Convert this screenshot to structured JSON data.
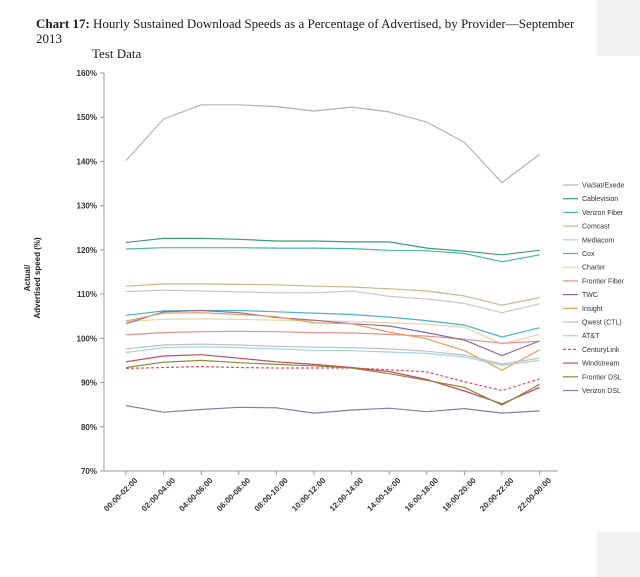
{
  "page": {
    "title_label": "Chart 17:",
    "title_line1": "Hourly Sustained Download Speeds as a Percentage of Advertised, by Provider—September 2013",
    "title_line2": "Test Data",
    "panel_color": "#f2f2f2"
  },
  "chart_data": {
    "type": "line",
    "categories": [
      "00:00-02:00",
      "02:00-04:00",
      "04:00-06:00",
      "06:00-08:00",
      "08:00-10:00",
      "10:00-12:00",
      "12:00-14:00",
      "14:00-16:00",
      "16:00-18:00",
      "18:00-20:00",
      "20:00-22:00",
      "22:00-00:00"
    ],
    "ylabel": [
      "Actual/",
      "Advertised speed (%)"
    ],
    "ylim": [
      70,
      160
    ],
    "yticks": [
      70,
      80,
      90,
      100,
      110,
      120,
      130,
      140,
      150,
      160
    ],
    "ytick_labels": [
      "70%",
      "80%",
      "90%",
      "100%",
      "110%",
      "120%",
      "130%",
      "140%",
      "150%",
      "160%"
    ],
    "grid": false,
    "legend_position": "right",
    "series": [
      {
        "name": "ViaSat/Exede",
        "color": "#b3b3b3",
        "values": [
          140.2,
          149.6,
          152.8,
          152.8,
          152.4,
          151.4,
          152.3,
          151.2,
          148.9,
          144.3,
          135.2,
          141.6
        ]
      },
      {
        "name": "Cablevision",
        "color": "#3d9e75",
        "values": [
          121.7,
          122.6,
          122.6,
          122.4,
          122.0,
          122.0,
          121.8,
          121.8,
          120.4,
          119.7,
          118.9,
          119.9
        ]
      },
      {
        "name": "Verizon Fiber",
        "color": "#45b8a8",
        "values": [
          120.2,
          120.5,
          120.5,
          120.5,
          120.4,
          120.4,
          120.3,
          119.9,
          119.8,
          119.2,
          117.3,
          118.9
        ]
      },
      {
        "name": "Comcast",
        "color": "#c9b98a",
        "values": [
          111.8,
          112.3,
          112.3,
          112.2,
          112.1,
          111.8,
          111.6,
          111.2,
          110.7,
          109.6,
          107.5,
          109.2
        ]
      },
      {
        "name": "Mediacom",
        "color": "#c8c8c8",
        "values": [
          110.6,
          110.9,
          110.7,
          110.5,
          110.3,
          110.3,
          110.7,
          109.5,
          108.9,
          107.9,
          105.8,
          107.8
        ]
      },
      {
        "name": "Cox",
        "color": "#4bb2c9",
        "values": [
          105.2,
          106.2,
          106.3,
          106.3,
          106.0,
          105.7,
          105.4,
          104.8,
          104.0,
          103.0,
          100.3,
          102.4
        ]
      },
      {
        "name": "Charter",
        "color": "#e8d3a8",
        "values": [
          103.8,
          104.3,
          104.4,
          104.3,
          104.1,
          104.0,
          103.8,
          103.5,
          103.2,
          102.5,
          98.7,
          100.9
        ]
      },
      {
        "name": "Frontier Fiber",
        "color": "#e58f8f",
        "values": [
          100.8,
          101.3,
          101.5,
          101.6,
          101.5,
          101.3,
          101.2,
          100.9,
          100.5,
          99.8,
          98.9,
          99.3
        ]
      },
      {
        "name": "TWC",
        "color": "#8c6d9e",
        "values": [
          103.3,
          106.0,
          106.3,
          105.8,
          104.7,
          104.1,
          103.3,
          102.8,
          101.3,
          99.6,
          96.1,
          99.4
        ]
      },
      {
        "name": "Insight",
        "color": "#e3a05a",
        "values": [
          103.9,
          105.7,
          105.8,
          105.4,
          104.9,
          103.5,
          103.3,
          101.4,
          99.9,
          97.2,
          92.8,
          97.4
        ]
      },
      {
        "name": "Qwest (CTL)",
        "color": "#bfbfbf",
        "values": [
          97.6,
          98.5,
          98.7,
          98.5,
          98.2,
          98.0,
          97.9,
          97.6,
          97.1,
          96.2,
          94.2,
          95.5
        ]
      },
      {
        "name": "AT&T",
        "color": "#9fd6e3",
        "values": [
          96.8,
          97.9,
          98.1,
          97.9,
          97.6,
          97.3,
          97.2,
          96.9,
          96.6,
          95.8,
          93.9,
          95.0
        ]
      },
      {
        "name": "CenturyLink",
        "color": "#d9535c",
        "dashed": true,
        "values": [
          93.2,
          93.4,
          93.6,
          93.4,
          93.3,
          93.3,
          93.3,
          92.9,
          92.4,
          90.2,
          88.2,
          90.8
        ]
      },
      {
        "name": "Windstream",
        "color": "#c44a5c",
        "values": [
          94.7,
          96.0,
          96.3,
          95.5,
          94.7,
          94.1,
          93.4,
          92.5,
          90.7,
          88.1,
          85.2,
          88.9
        ]
      },
      {
        "name": "Frontier DSL",
        "color": "#8a8a3c",
        "values": [
          93.4,
          94.6,
          95.0,
          94.5,
          94.1,
          93.8,
          93.3,
          92.0,
          90.5,
          88.9,
          84.9,
          89.6
        ]
      },
      {
        "name": "Verizon DSL",
        "color": "#8a7aa8",
        "values": [
          84.8,
          83.3,
          83.9,
          84.4,
          84.3,
          83.1,
          83.8,
          84.2,
          83.4,
          84.1,
          83.1,
          83.6
        ]
      }
    ]
  }
}
